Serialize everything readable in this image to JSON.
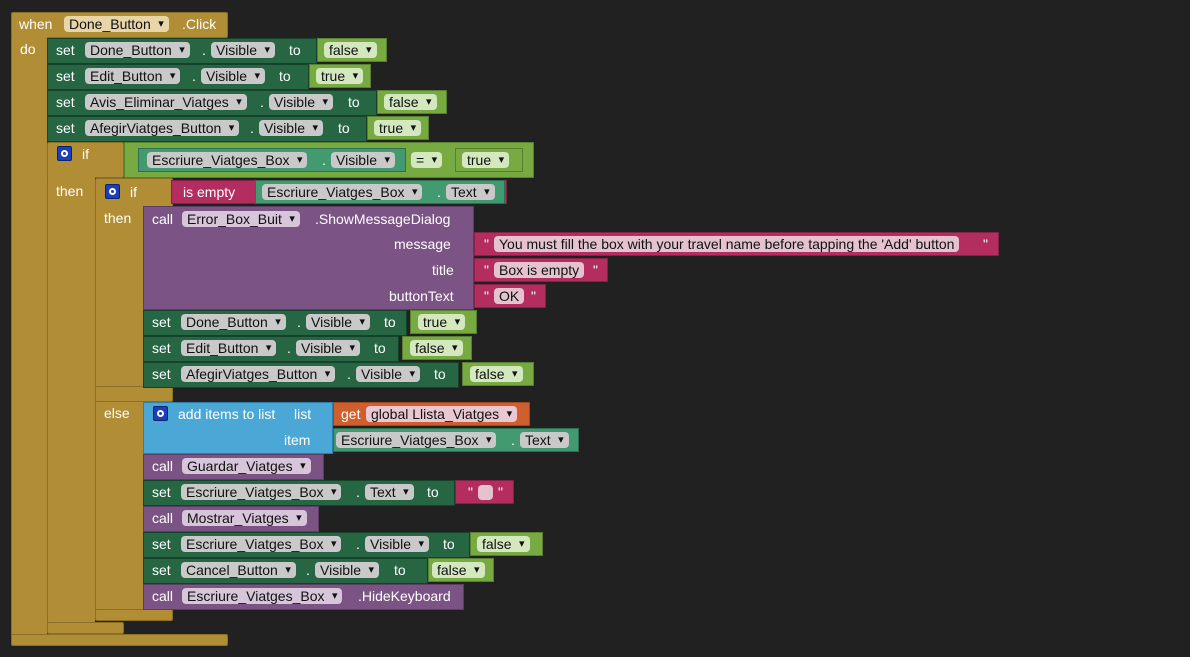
{
  "kw": {
    "when": "when",
    "do": "do",
    "set": "set",
    "to": "to",
    "dot": ".",
    "if": "if",
    "then": "then",
    "else": "else",
    "call": "call",
    "is_empty": "is empty",
    "eq": "=",
    "quote": "\"",
    "add_items": "add items to list",
    "list": "list",
    "item": "item",
    "get": "get",
    "message": "message",
    "title": "title",
    "buttonText": "buttonText"
  },
  "event": {
    "component": "Done_Button",
    "event": ".Click"
  },
  "stmts": {
    "s1": {
      "component": "Done_Button",
      "prop": "Visible",
      "value": "false"
    },
    "s2": {
      "component": "Edit_Button",
      "prop": "Visible",
      "value": "true"
    },
    "s3": {
      "component": "Avis_Eliminar_Viatges",
      "prop": "Visible",
      "value": "false"
    },
    "s4": {
      "component": "AfegirViatges_Button",
      "prop": "Visible",
      "value": "true"
    }
  },
  "if1": {
    "component": "Escriure_Viatges_Box",
    "prop": "Visible",
    "op": "=",
    "value": "true"
  },
  "if2": {
    "component": "Escriure_Viatges_Box",
    "prop": "Text"
  },
  "dialog": {
    "component": "Error_Box_Buit",
    "method": ".ShowMessageDialog",
    "message": "You must fill the box with your travel name before tapping the 'Add'  button",
    "title": "Box is empty",
    "buttonText": "OK"
  },
  "then_sets": {
    "t1": {
      "component": "Done_Button",
      "prop": "Visible",
      "value": "true"
    },
    "t2": {
      "component": "Edit_Button",
      "prop": "Visible",
      "value": "false"
    },
    "t3": {
      "component": "AfegirViatges_Button",
      "prop": "Visible",
      "value": "false"
    }
  },
  "else": {
    "list_var": "global Llista_Viatges",
    "item_component": "Escriure_Viatges_Box",
    "item_prop": "Text",
    "call1": "Guardar_Viatges",
    "set1": {
      "component": "Escriure_Viatges_Box",
      "prop": "Text",
      "value": ""
    },
    "call2": "Mostrar_Viatges",
    "set2": {
      "component": "Escriure_Viatges_Box",
      "prop": "Visible",
      "value": "false"
    },
    "set3": {
      "component": "Cancel_Button",
      "prop": "Visible",
      "value": "false"
    },
    "call3": {
      "component": "Escriure_Viatges_Box",
      "method": ".HideKeyboard"
    }
  },
  "colors": {
    "event": "#b18e35",
    "set": "#266643",
    "procedure": "#7c5385",
    "list": "#4aa7d6",
    "variable": "#d05f2d",
    "logic": "#77ab41",
    "text": "#b32d5e",
    "compare": "#439970",
    "background": "#212121"
  }
}
